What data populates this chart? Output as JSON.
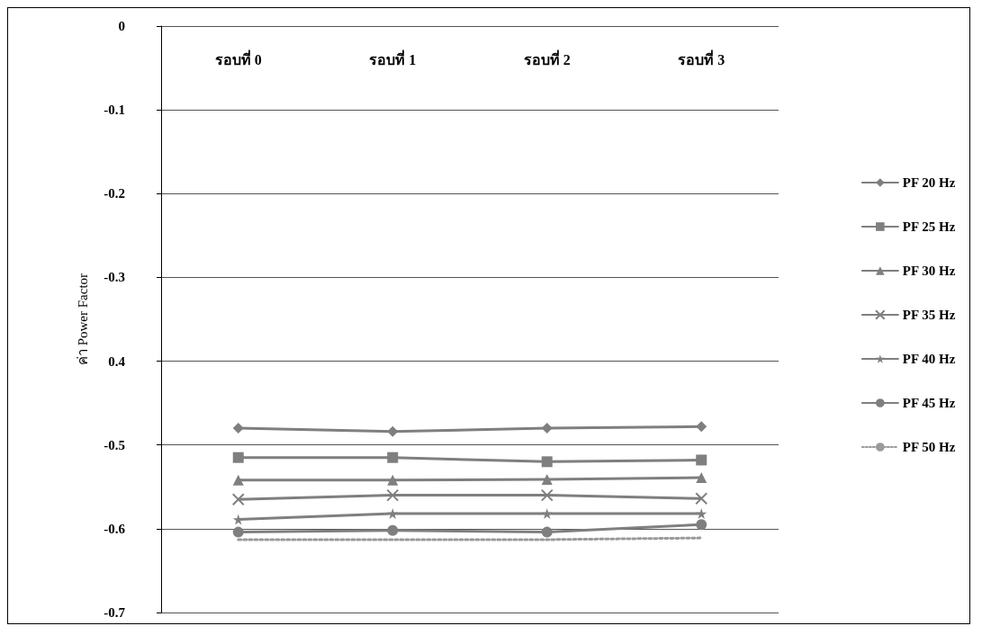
{
  "chart_data": {
    "type": "line",
    "ylabel": "ค่า Power Factor",
    "categories": [
      "รอบที่ 0",
      "รอบที่ 1",
      "รอบที่ 2",
      "รอบที่ 3"
    ],
    "ylim": [
      -0.7,
      0
    ],
    "yticks": [
      0,
      -0.1,
      -0.2,
      -0.3,
      {
        "value": -0.4,
        "label": "0.4"
      },
      -0.5,
      -0.6,
      -0.7
    ],
    "grid": "y",
    "legend": "right",
    "series": [
      {
        "name": "PF 20 Hz",
        "color": "#7f7f7f",
        "marker": "diamond",
        "values": [
          -0.48,
          -0.484,
          -0.48,
          -0.478
        ]
      },
      {
        "name": "PF 25 Hz",
        "color": "#7f7f7f",
        "marker": "square",
        "values": [
          -0.515,
          -0.515,
          -0.52,
          -0.518
        ]
      },
      {
        "name": "PF 30 Hz",
        "color": "#7f7f7f",
        "marker": "triangle",
        "values": [
          -0.542,
          -0.542,
          -0.541,
          -0.539
        ]
      },
      {
        "name": "PF 35 Hz",
        "color": "#7f7f7f",
        "marker": "cross",
        "values": [
          -0.565,
          -0.56,
          -0.56,
          -0.564
        ]
      },
      {
        "name": "PF 40 Hz",
        "color": "#7f7f7f",
        "marker": "star",
        "values": [
          -0.589,
          -0.582,
          -0.582,
          -0.582
        ]
      },
      {
        "name": "PF 45 Hz",
        "color": "#7f7f7f",
        "marker": "circle",
        "values": [
          -0.604,
          -0.602,
          -0.604,
          -0.595
        ]
      },
      {
        "name": "PF 50 Hz",
        "color": "#9a9a9a",
        "marker": "none",
        "line_style": "dotted",
        "values": [
          -0.613,
          -0.613,
          -0.613,
          -0.611
        ]
      }
    ]
  }
}
